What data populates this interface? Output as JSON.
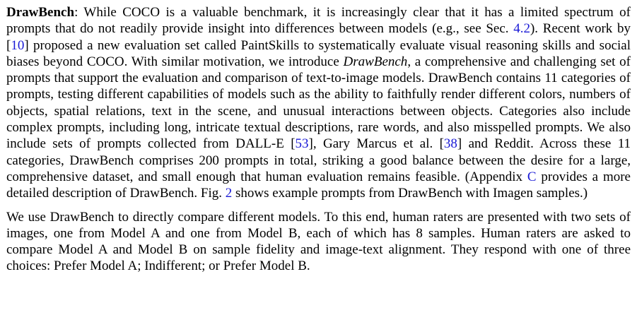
{
  "paragraphs": [
    {
      "segments": [
        {
          "text": "DrawBench",
          "style": "bold"
        },
        {
          "text": ": While COCO is a valuable benchmark, it is increasingly clear that it has a limited spectrum of prompts that do not readily provide insight into differences between models (e.g., see Sec. "
        },
        {
          "text": "4.2",
          "style": "ref"
        },
        {
          "text": "). Recent work by ["
        },
        {
          "text": "10",
          "style": "ref"
        },
        {
          "text": "] proposed a new evaluation set called PaintSkills to systematically evaluate visual reasoning skills and social biases beyond COCO. With similar motivation, we introduce "
        },
        {
          "text": "DrawBench",
          "style": "em"
        },
        {
          "text": ", a comprehensive and challenging set of prompts that support the evaluation and comparison of text-to-image models. DrawBench contains 11 categories of prompts, testing different capabilities of models such as the ability to faithfully render different colors, numbers of objects, spatial relations, text in the scene, and unusual interactions between objects. Categories also include complex prompts, including long, intricate textual descriptions, rare words, and also misspelled prompts. We also include sets of prompts collected from DALL-E ["
        },
        {
          "text": "53",
          "style": "ref"
        },
        {
          "text": "], Gary Marcus et al. ["
        },
        {
          "text": "38",
          "style": "ref"
        },
        {
          "text": "] and Reddit. Across these 11 categories, DrawBench comprises 200 prompts in total, striking a good balance between the desire for a large, comprehensive dataset, and small enough that human evaluation remains feasible. (Appendix "
        },
        {
          "text": "C",
          "style": "ref"
        },
        {
          "text": " provides a more detailed description of DrawBench. Fig. "
        },
        {
          "text": "2",
          "style": "ref"
        },
        {
          "text": " shows example prompts from DrawBench with Imagen samples.)"
        }
      ]
    },
    {
      "segments": [
        {
          "text": "We use DrawBench to directly compare different models. To this end, human raters are presented with two sets of images, one from Model A and one from Model B, each of which has 8 samples. Human raters are asked to compare Model A and Model B on sample fidelity and image-text alignment. They respond with one of three choices: Prefer Model A; Indifferent; or Prefer Model B."
        }
      ]
    }
  ]
}
